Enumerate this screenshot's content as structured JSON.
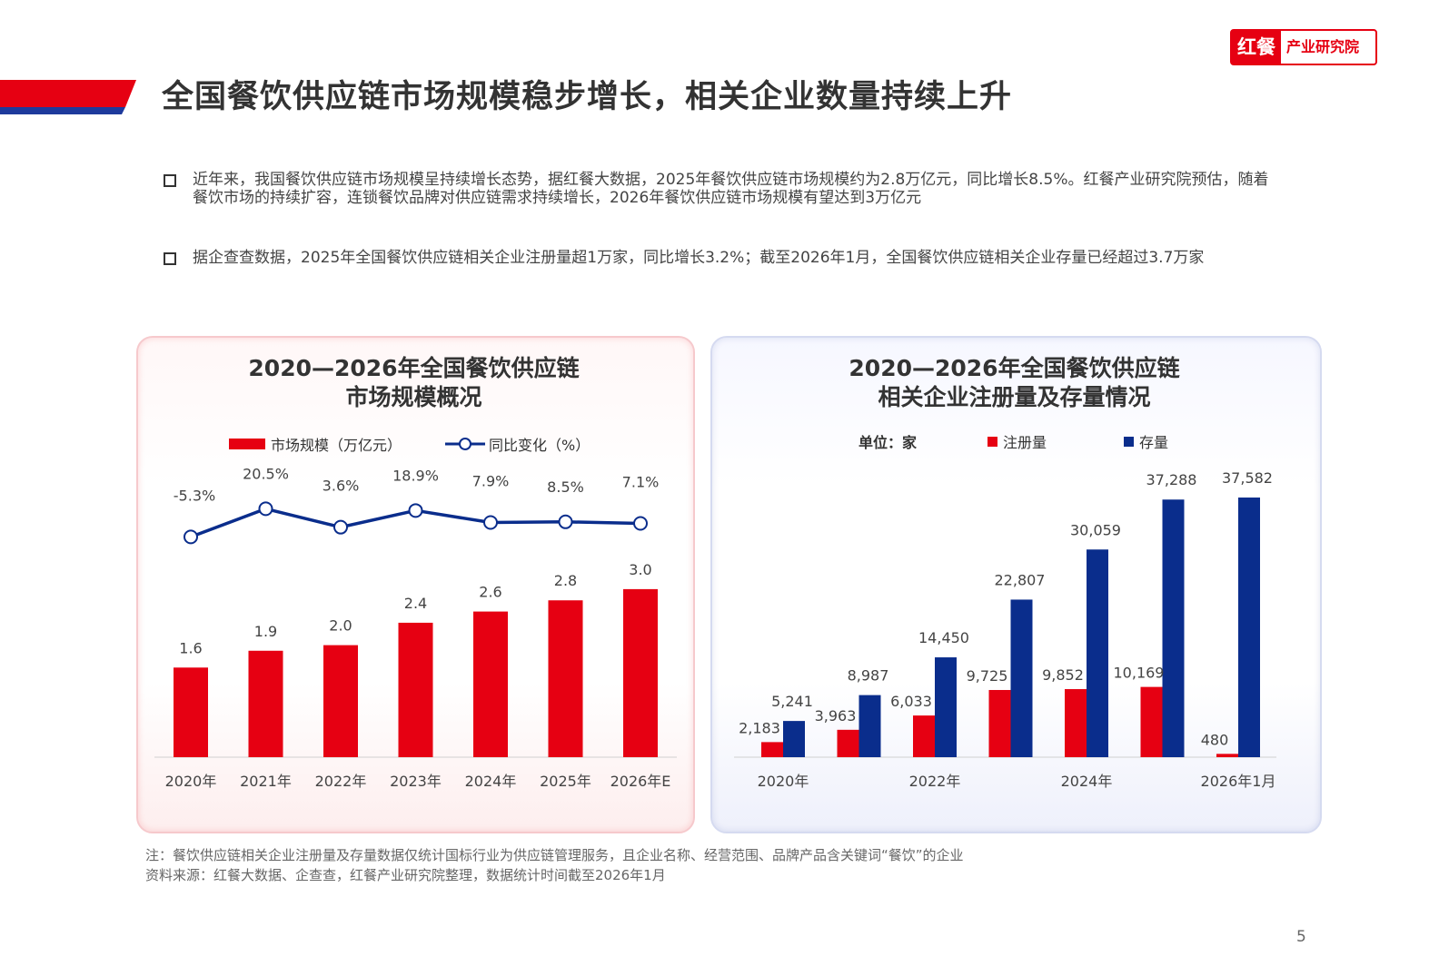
{
  "header": {
    "title": "全国餐饮供应链市场规模稳步增长，相关企业数量持续上升",
    "logo": {
      "brand": "红餐",
      "org": "产业研究院"
    },
    "colors": {
      "red": "#e60012",
      "blue": "#0a2d8c"
    }
  },
  "bullets": [
    {
      "text": "近年来，我国餐饮供应链市场规模呈持续增长态势，据红餐大数据，2025年餐饮供应链市场规模约为2.8万亿元，同比增长8.5%。红餐产业研究院预估，随着餐饮市场的持续扩容，连锁餐饮品牌对供应链需求持续增长，2026年餐饮供应链市场规模有望达到3万亿元"
    },
    {
      "text": "据企查查数据，2025年全国餐饮供应链相关企业注册量超1万家，同比增长3.2%；截至2026年1月，全国餐饮供应链相关企业存量已经超过3.7万家"
    }
  ],
  "chart_data": [
    {
      "type": "bar+line",
      "title_line1": "2020—2026年全国餐饮供应链",
      "title_line2": "市场规模概况",
      "categories": [
        "2020年",
        "2021年",
        "2022年",
        "2023年",
        "2024年",
        "2025年",
        "2026年E"
      ],
      "series": [
        {
          "name": "市场规模（万亿元）",
          "type": "bar",
          "color": "#e60012",
          "values": [
            1.6,
            1.9,
            2.0,
            2.4,
            2.6,
            2.8,
            3.0
          ],
          "labels": [
            "1.6",
            "1.9",
            "2.0",
            "2.4",
            "2.6",
            "2.8",
            "3.0"
          ]
        },
        {
          "name": "同比变化（%）",
          "type": "line",
          "color": "#0a2d8c",
          "values": [
            -5.3,
            20.5,
            3.6,
            18.9,
            7.9,
            8.5,
            7.1
          ],
          "labels": [
            "-5.3%",
            "20.5%",
            "3.6%",
            "18.9%",
            "7.9%",
            "8.5%",
            "7.1%"
          ]
        }
      ],
      "legend": "top",
      "grid": false
    },
    {
      "type": "bar",
      "title_line1": "2020—2026年全国餐饮供应链",
      "title_line2": "相关企业注册量及存量情况",
      "unit": "单位：家",
      "categories": [
        "2020年",
        "",
        "2022年",
        "",
        "2024年",
        "",
        "2026年1月"
      ],
      "series": [
        {
          "name": "注册量",
          "color": "#e60012",
          "values": [
            2183,
            3963,
            6033,
            9725,
            9852,
            10169,
            480
          ],
          "labels": [
            "2,183",
            "3,963",
            "6,033",
            "9,725",
            "9,852",
            "10,169",
            "480"
          ]
        },
        {
          "name": "存量",
          "color": "#0a2d8c",
          "values": [
            5241,
            8987,
            14450,
            22807,
            30059,
            37288,
            37582
          ],
          "labels": [
            "5,241",
            "8,987",
            "14,450",
            "22,807",
            "30,059",
            "37,288",
            "37,582"
          ]
        }
      ],
      "legend": "top",
      "grid": false
    }
  ],
  "footer": {
    "note": "注：餐饮供应链相关企业注册量及存量数据仅统计国标行业为供应链管理服务，且企业名称、经营范围、品牌产品含关键词“餐饮”的企业",
    "source": "资料来源：红餐大数据、企查查，红餐产业研究院整理，数据统计时间截至2026年1月"
  },
  "page_number": "5"
}
